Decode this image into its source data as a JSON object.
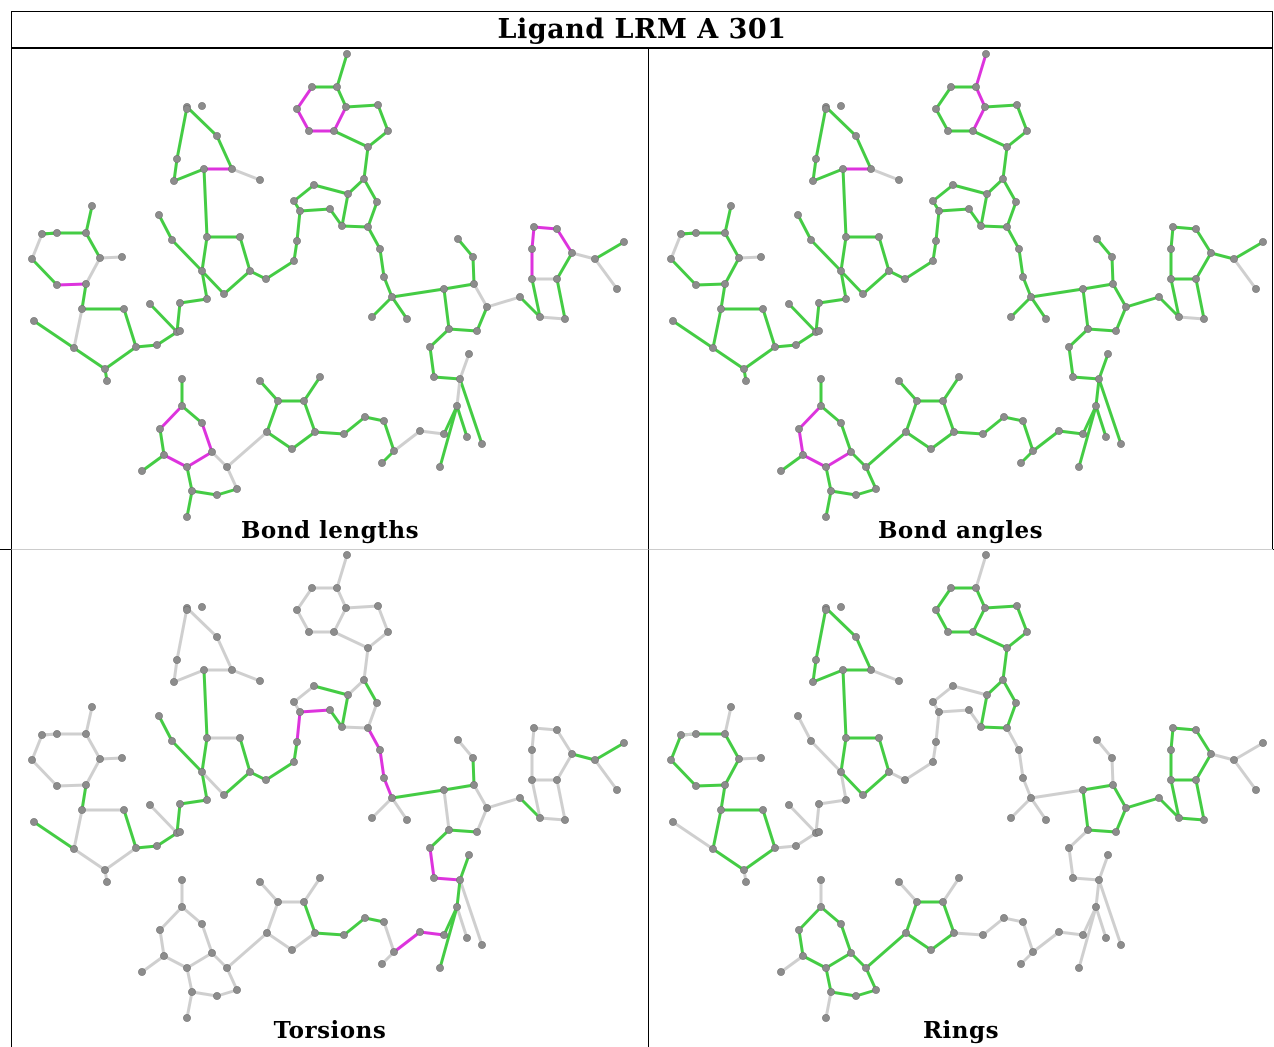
{
  "title": "Ligand LRM A 301",
  "panels": [
    {
      "label": "Bond lengths"
    },
    {
      "label": "Bond angles"
    },
    {
      "label": "Torsions"
    },
    {
      "label": "Rings"
    }
  ],
  "colors": {
    "atom": "#8c8c8c",
    "bond_neutral": "#cfcfcf",
    "bond_good": "#44cc44",
    "bond_outlier": "#dd33dd",
    "frame": "#000000"
  }
}
